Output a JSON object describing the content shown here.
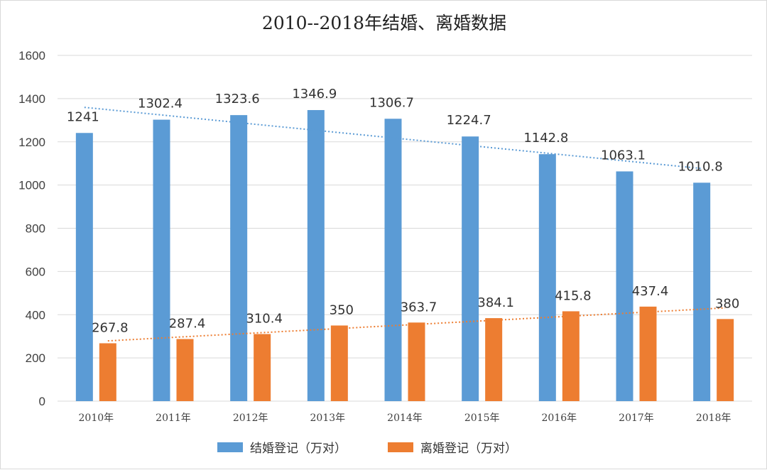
{
  "chart_data": {
    "type": "bar",
    "title": "2010--2018年结婚、离婚数据",
    "categories": [
      "2010年",
      "2011年",
      "2012年",
      "2013年",
      "2014年",
      "2015年",
      "2016年",
      "2017年",
      "2018年"
    ],
    "series": [
      {
        "name": "结婚登记（万对）",
        "color": "#5b9bd5",
        "trend_color": "#5b9bd5",
        "values": [
          1241,
          1302.4,
          1323.6,
          1346.9,
          1306.7,
          1224.7,
          1142.8,
          1063.1,
          1010.8
        ],
        "labels": [
          "1241",
          "1302.4",
          "1323.6",
          "1346.9",
          "1306.7",
          "1224.7",
          "1142.8",
          "1063.1",
          "1010.8"
        ]
      },
      {
        "name": "离婚登记（万对）",
        "color": "#ed7d31",
        "trend_color": "#ed7d31",
        "values": [
          267.8,
          287.4,
          310.4,
          350,
          363.7,
          384.1,
          415.8,
          437.4,
          380
        ],
        "labels": [
          "267.8",
          "287.4",
          "310.4",
          "350",
          "363.7",
          "384.1",
          "415.8",
          "437.4",
          "380"
        ]
      }
    ],
    "y_ticks": [
      "0",
      "200",
      "400",
      "600",
      "800",
      "1000",
      "1200",
      "1400",
      "1600"
    ],
    "ylim": [
      0,
      1600
    ],
    "grid": true,
    "trendlines": "linear, dotted, per series",
    "legend_position": "bottom"
  }
}
